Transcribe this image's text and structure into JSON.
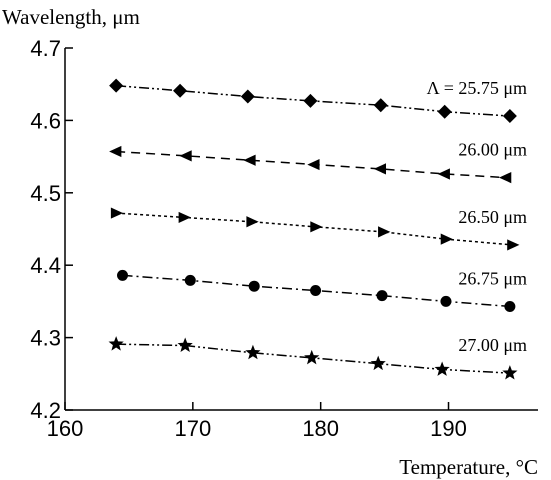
{
  "chart_data": {
    "type": "line",
    "title": "",
    "xlabel": "Temperature, °C",
    "ylabel": "Wavelength, μm",
    "xlim": [
      160,
      197
    ],
    "ylim": [
      4.2,
      4.7
    ],
    "xticks": [
      160,
      170,
      180,
      190
    ],
    "yticks": [
      4.2,
      4.3,
      4.4,
      4.5,
      4.6,
      4.7
    ],
    "xtick_labels": [
      "160",
      "170",
      "180",
      "190"
    ],
    "ytick_labels": [
      "4.2",
      "4.3",
      "4.4",
      "4.5",
      "4.6",
      "4.7"
    ],
    "grid": false,
    "legend": "inline labels at right of each series",
    "series": [
      {
        "name": "Λ = 25.75 μm",
        "marker": "diamond",
        "dash": "dash-dot-dot",
        "x": [
          164.0,
          169.0,
          174.3,
          179.2,
          184.7,
          189.7,
          194.8
        ],
        "y": [
          4.648,
          4.641,
          4.633,
          4.627,
          4.621,
          4.612,
          4.606
        ]
      },
      {
        "name": "26.00 μm",
        "marker": "triangle-left",
        "dash": "dash",
        "x": [
          164.0,
          169.5,
          174.5,
          179.5,
          184.7,
          189.7,
          194.5
        ],
        "y": [
          4.557,
          4.551,
          4.545,
          4.539,
          4.533,
          4.526,
          4.521
        ]
      },
      {
        "name": "26.50 μm",
        "marker": "triangle-right",
        "dash": "dot",
        "x": [
          164.0,
          169.3,
          174.6,
          179.6,
          184.9,
          189.8,
          195.0
        ],
        "y": [
          4.472,
          4.466,
          4.46,
          4.453,
          4.446,
          4.436,
          4.428
        ]
      },
      {
        "name": "26.75 μm",
        "marker": "circle",
        "dash": "dash-dot",
        "x": [
          164.5,
          169.8,
          174.8,
          179.6,
          184.8,
          189.8,
          194.8
        ],
        "y": [
          4.386,
          4.379,
          4.371,
          4.365,
          4.358,
          4.35,
          4.343
        ]
      },
      {
        "name": "27.00 μm",
        "marker": "star",
        "dash": "dash-dot-dot",
        "x": [
          164.0,
          169.4,
          174.7,
          179.3,
          184.5,
          189.5,
          194.8
        ],
        "y": [
          4.291,
          4.289,
          4.279,
          4.272,
          4.264,
          4.256,
          4.251
        ]
      }
    ]
  }
}
